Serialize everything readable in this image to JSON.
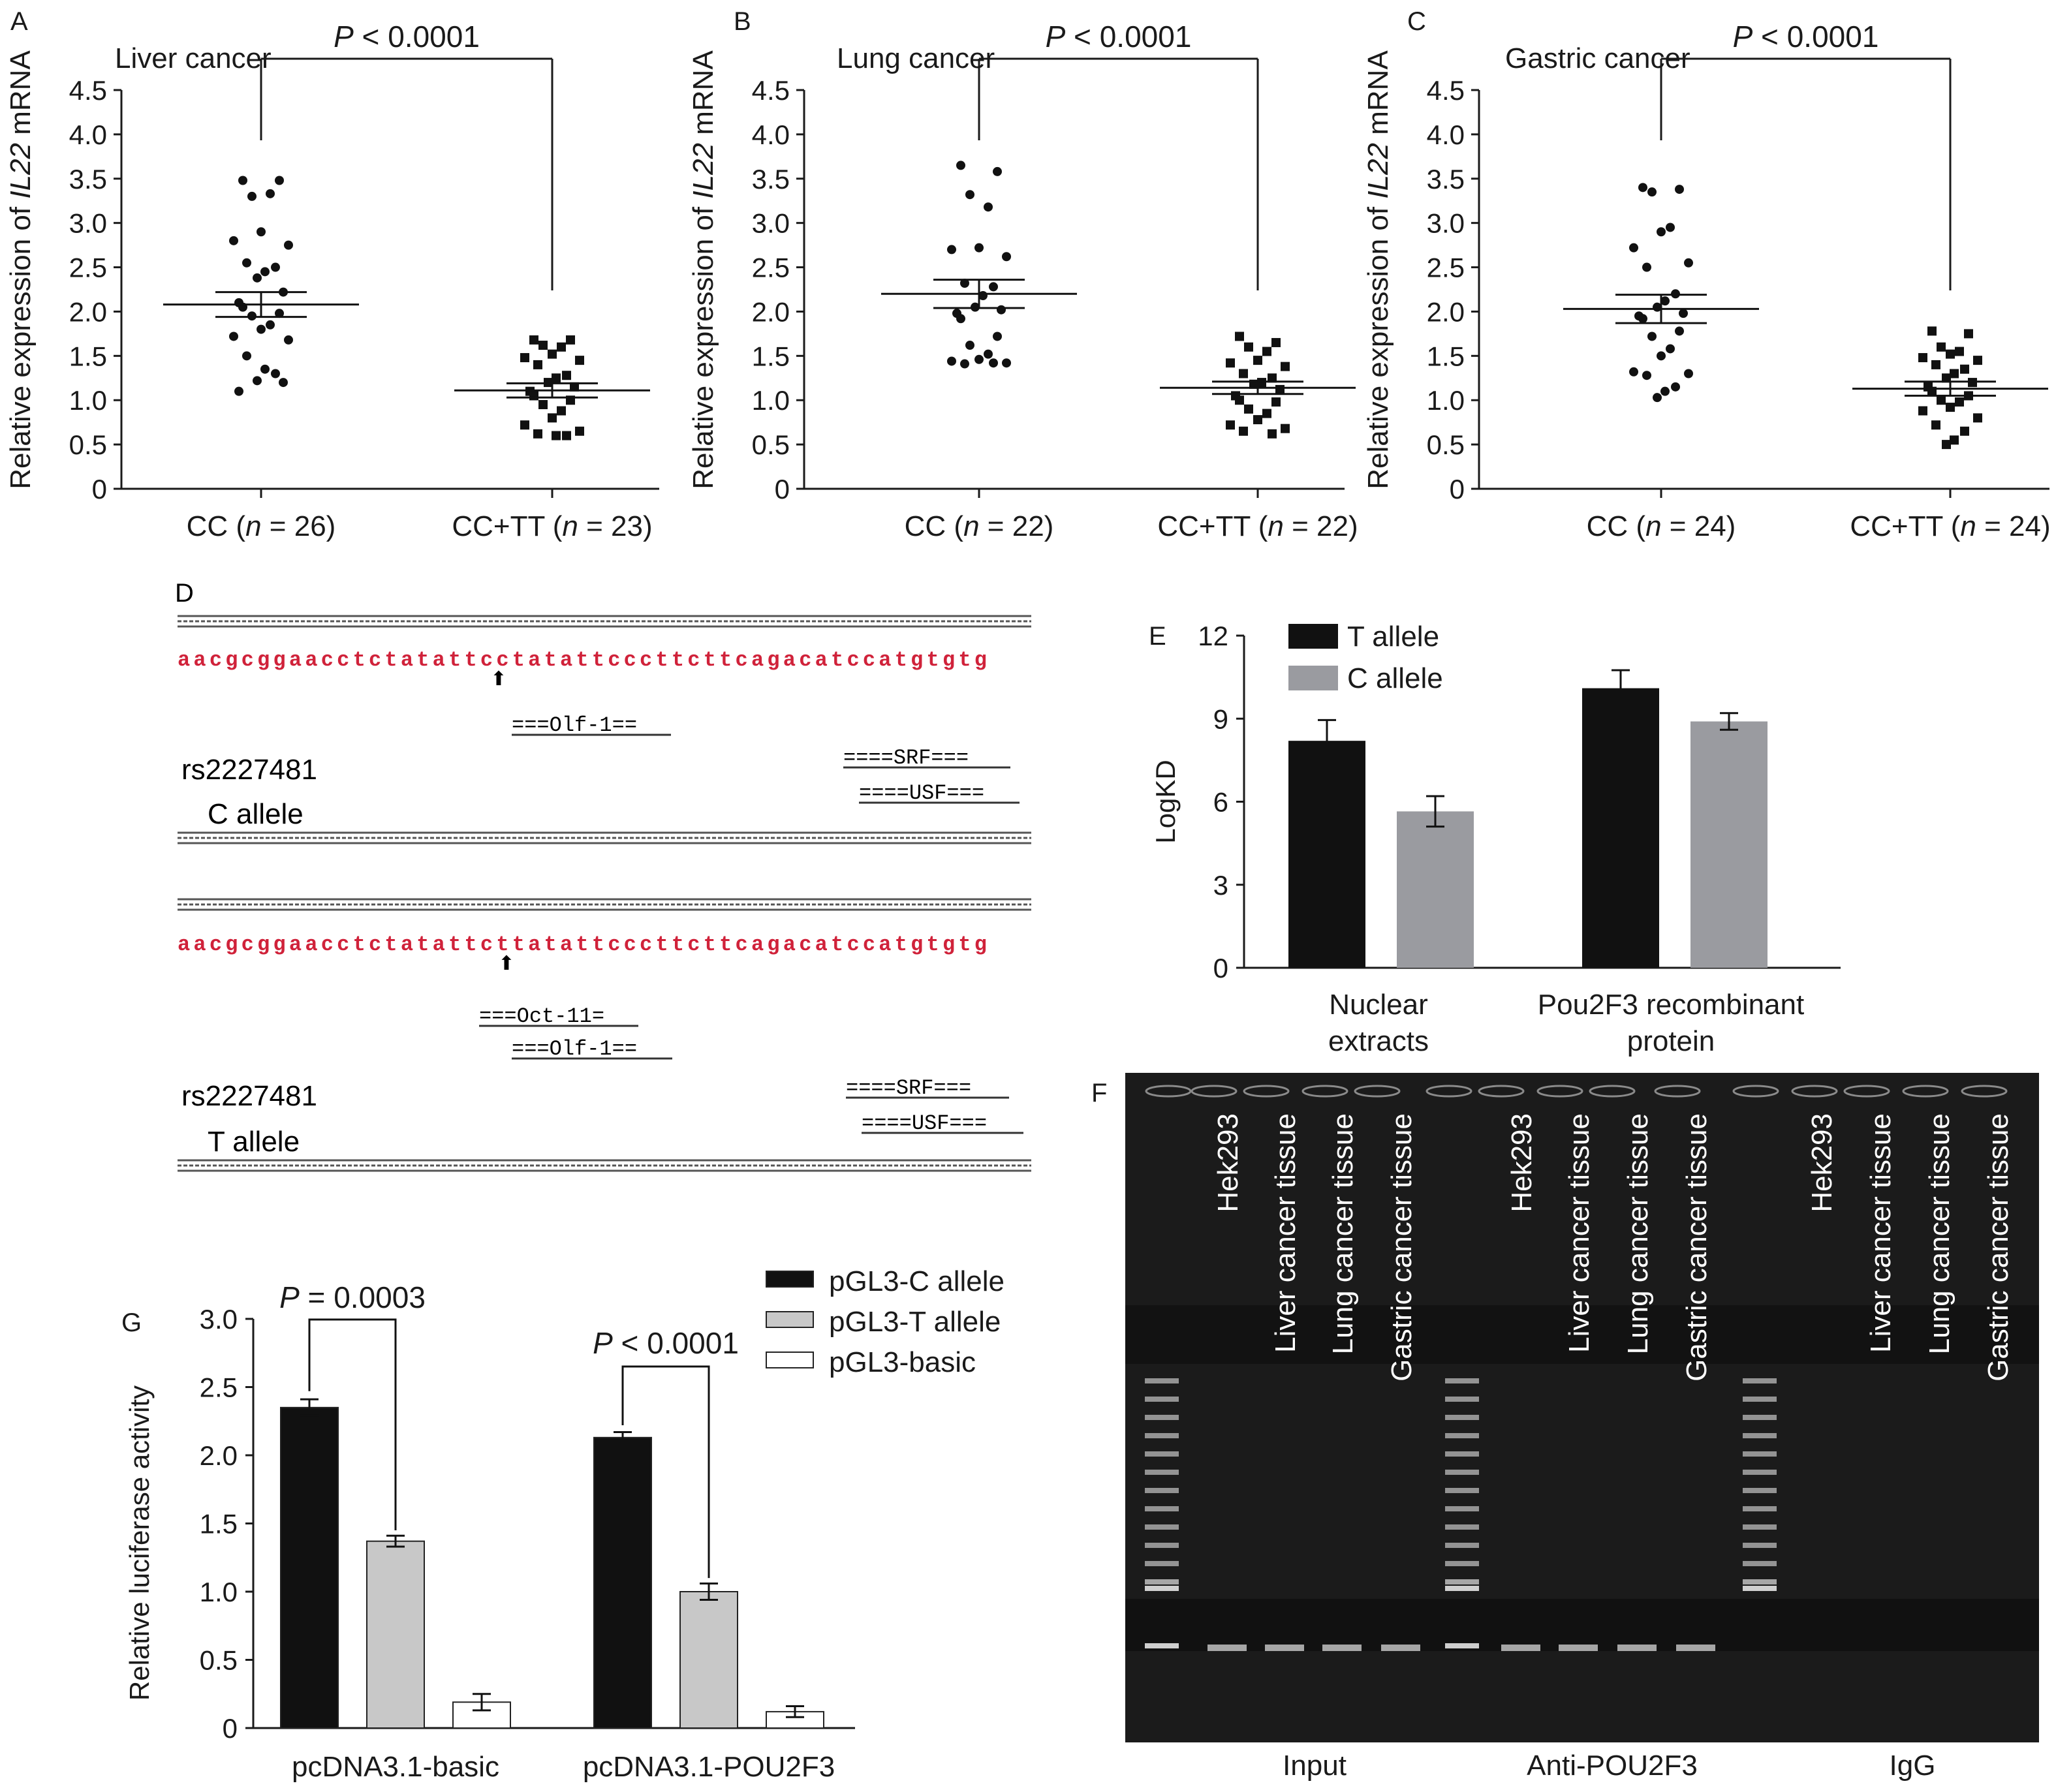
{
  "colors": {
    "axis": "#1a1a1a",
    "black_bar": "#111111",
    "gray_bar": "#9a9ba0",
    "light_gray_bar": "#c8c8c8",
    "white_bar": "#ffffff",
    "sequence_red": "#d0223a",
    "gel_bg": "#1b1b1b",
    "gel_band": "#d8d8d8"
  },
  "panels": {
    "A": {
      "letter": "A",
      "title": "Liver cancer",
      "ylabel_pre": "Relative expression of ",
      "ylabel_italic": "IL22",
      "ylabel_post": " mRNA",
      "pvalue_p": "P",
      "pvalue_rest": " < 0.0001",
      "groups": [
        {
          "label_pre": "CC (",
          "label_n": "n",
          "label_post": " = 26)"
        },
        {
          "label_pre": "CC+TT (",
          "label_n": "n",
          "label_post": " = 23)"
        }
      ]
    },
    "B": {
      "letter": "B",
      "title": "Lung cancer",
      "ylabel_pre": "Relative expression of ",
      "ylabel_italic": "IL22",
      "ylabel_post": " mRNA",
      "pvalue_p": "P",
      "pvalue_rest": " < 0.0001",
      "groups": [
        {
          "label_pre": "CC (",
          "label_n": "n",
          "label_post": " = 22)"
        },
        {
          "label_pre": "CC+TT (",
          "label_n": "n",
          "label_post": " = 22)"
        }
      ]
    },
    "C": {
      "letter": "C",
      "title": "Gastric cancer",
      "ylabel_pre": "Relative expression of ",
      "ylabel_italic": "IL22",
      "ylabel_post": " mRNA",
      "pvalue_p": "P",
      "pvalue_rest": " < 0.0001",
      "groups": [
        {
          "label_pre": "CC (",
          "label_n": "n",
          "label_post": " = 24)"
        },
        {
          "label_pre": "CC+TT (",
          "label_n": "n",
          "label_post": " = 24)"
        }
      ]
    },
    "D": {
      "letter": "D",
      "c_block": {
        "sequence": "aacgcggaacctctatattcctatattcccttcttcagacatccatgtgtg",
        "sites": [
          "===Olf-1==",
          "====SRF===",
          "====USF==="
        ],
        "snp": "rs2227481",
        "allele": "C allele"
      },
      "t_block": {
        "sequence": "aacgcggaacctctatattcttatattcccttcttcagacatccatgtgtg",
        "sites": [
          "===Oct-11=",
          "===Olf-1==",
          "====SRF===",
          "====USF==="
        ],
        "snp": "rs2227481",
        "allele": "T allele"
      }
    },
    "E": {
      "letter": "E",
      "ylabel": "LogKD",
      "legend": [
        "T allele",
        "C allele"
      ],
      "xlabels": [
        [
          "Nuclear",
          "extracts"
        ],
        [
          "Pou2F3 recombinant",
          "protein"
        ]
      ]
    },
    "F": {
      "letter": "F",
      "lanes": [
        "Hek293",
        "Liver cancer tissue",
        "Lung cancer tissue",
        "Gastric cancer tissue",
        "Hek293",
        "Liver cancer tissue",
        "Lung cancer tissue",
        "Gastric cancer tissue",
        "Hek293",
        "Liver cancer tissue",
        "Lung cancer tissue",
        "Gastric cancer tissue"
      ],
      "groups": [
        "Input",
        "Anti-POU2F3",
        "IgG"
      ]
    },
    "G": {
      "letter": "G",
      "ylabel": "Relative luciferase activity",
      "legend": [
        "pGL3-C allele",
        "pGL3-T allele",
        "pGL3-basic"
      ],
      "p1_p": "P",
      "p1_rest": " = 0.0003",
      "p2_p": "P",
      "p2_rest": " < 0.0001"
    }
  },
  "chart_data": [
    {
      "panel": "A",
      "type": "scatter",
      "title": "Liver cancer",
      "ylabel": "Relative expression of IL22 mRNA",
      "ylim": [
        0,
        4.5
      ],
      "yticks": [
        "0",
        "0.5",
        "1.0",
        "1.5",
        "2.0",
        "2.5",
        "3.0",
        "3.5",
        "4.0",
        "4.5"
      ],
      "categories": [
        "CC (n = 26)",
        "CC+TT (n = 23)"
      ],
      "mean": [
        2.08,
        1.11
      ],
      "sem_low": [
        1.94,
        1.03
      ],
      "sem_high": [
        2.22,
        1.19
      ],
      "series": [
        {
          "marker": "circle",
          "values": [
            3.48,
            3.48,
            3.3,
            3.33,
            2.9,
            2.8,
            2.75,
            2.55,
            2.5,
            2.45,
            2.38,
            2.22,
            2.1,
            2.05,
            1.98,
            1.95,
            1.85,
            1.8,
            1.72,
            1.68,
            1.5,
            1.3,
            1.35,
            1.22,
            1.2,
            1.1
          ]
        },
        {
          "marker": "square",
          "values": [
            1.68,
            1.68,
            1.62,
            1.6,
            1.52,
            1.48,
            1.45,
            1.4,
            1.28,
            1.25,
            1.2,
            1.15,
            1.1,
            1.05,
            1.0,
            0.95,
            0.88,
            0.8,
            0.72,
            0.65,
            0.62,
            0.6,
            0.6
          ]
        }
      ]
    },
    {
      "panel": "B",
      "type": "scatter",
      "title": "Lung cancer",
      "ylabel": "Relative expression of IL22 mRNA",
      "ylim": [
        0,
        4.5
      ],
      "yticks": [
        "0",
        "0.5",
        "1.0",
        "1.5",
        "2.0",
        "2.5",
        "3.0",
        "3.5",
        "4.0",
        "4.5"
      ],
      "categories": [
        "CC (n = 22)",
        "CC+TT (n = 22)"
      ],
      "mean": [
        2.2,
        1.14
      ],
      "sem_low": [
        2.04,
        1.07
      ],
      "sem_high": [
        2.36,
        1.21
      ],
      "series": [
        {
          "marker": "circle",
          "values": [
            3.65,
            3.58,
            3.32,
            3.18,
            2.72,
            2.7,
            2.62,
            2.32,
            2.28,
            2.18,
            2.05,
            2.02,
            1.98,
            1.92,
            1.72,
            1.62,
            1.52,
            1.46,
            1.44,
            1.42,
            1.41,
            1.42
          ]
        },
        {
          "marker": "square",
          "values": [
            1.72,
            1.65,
            1.6,
            1.55,
            1.45,
            1.42,
            1.38,
            1.3,
            1.25,
            1.2,
            1.18,
            1.12,
            1.05,
            1.0,
            0.98,
            0.9,
            0.85,
            0.78,
            0.72,
            0.68,
            0.65,
            0.62
          ]
        }
      ]
    },
    {
      "panel": "C",
      "type": "scatter",
      "title": "Gastric cancer",
      "ylabel": "Relative expression of IL22 mRNA",
      "ylim": [
        0,
        4.5
      ],
      "yticks": [
        "0",
        "0.5",
        "1.0",
        "1.5",
        "2.0",
        "2.5",
        "3.0",
        "3.5",
        "4.0",
        "4.5"
      ],
      "categories": [
        "CC (n = 24)",
        "CC+TT (n = 24)"
      ],
      "mean": [
        2.03,
        1.13
      ],
      "sem_low": [
        1.87,
        1.05
      ],
      "sem_high": [
        2.19,
        1.21
      ],
      "series": [
        {
          "marker": "circle",
          "values": [
            3.4,
            3.38,
            3.35,
            2.95,
            2.9,
            2.72,
            2.55,
            2.5,
            2.2,
            2.12,
            2.05,
            1.98,
            1.95,
            1.92,
            1.78,
            1.72,
            1.58,
            1.5,
            1.32,
            1.3,
            1.28,
            1.15,
            1.1,
            1.03
          ]
        },
        {
          "marker": "square",
          "values": [
            1.78,
            1.75,
            1.6,
            1.55,
            1.52,
            1.48,
            1.45,
            1.4,
            1.35,
            1.3,
            1.25,
            1.2,
            1.15,
            1.1,
            1.05,
            1.0,
            0.98,
            0.92,
            0.88,
            0.8,
            0.72,
            0.65,
            0.55,
            0.5
          ]
        }
      ]
    },
    {
      "panel": "E",
      "type": "bar",
      "ylabel": "LogKD",
      "ylim": [
        0,
        12
      ],
      "yticks": [
        "0",
        "3",
        "6",
        "9",
        "12"
      ],
      "categories": [
        "Nuclear extracts",
        "Pou2F3 recombinant protein"
      ],
      "series": [
        {
          "name": "T allele",
          "values": [
            8.2,
            10.1
          ],
          "errors": [
            0.75,
            0.65
          ]
        },
        {
          "name": "C allele",
          "values": [
            5.65,
            8.9
          ],
          "errors": [
            0.55,
            0.3
          ]
        }
      ]
    },
    {
      "panel": "G",
      "type": "bar",
      "ylabel": "Relative luciferase activity",
      "ylim": [
        0,
        3.0
      ],
      "yticks": [
        "0",
        "0.5",
        "1.0",
        "1.5",
        "2.0",
        "2.5",
        "3.0"
      ],
      "categories": [
        "pcDNA3.1-basic",
        "pcDNA3.1-POU2F3"
      ],
      "series": [
        {
          "name": "pGL3-C allele",
          "values": [
            2.35,
            2.13
          ],
          "errors": [
            0.06,
            0.04
          ]
        },
        {
          "name": "pGL3-T allele",
          "values": [
            1.37,
            1.0
          ],
          "errors": [
            0.04,
            0.06
          ]
        },
        {
          "name": "pGL3-basic",
          "values": [
            0.19,
            0.12
          ],
          "errors": [
            0.06,
            0.04
          ]
        }
      ]
    }
  ]
}
